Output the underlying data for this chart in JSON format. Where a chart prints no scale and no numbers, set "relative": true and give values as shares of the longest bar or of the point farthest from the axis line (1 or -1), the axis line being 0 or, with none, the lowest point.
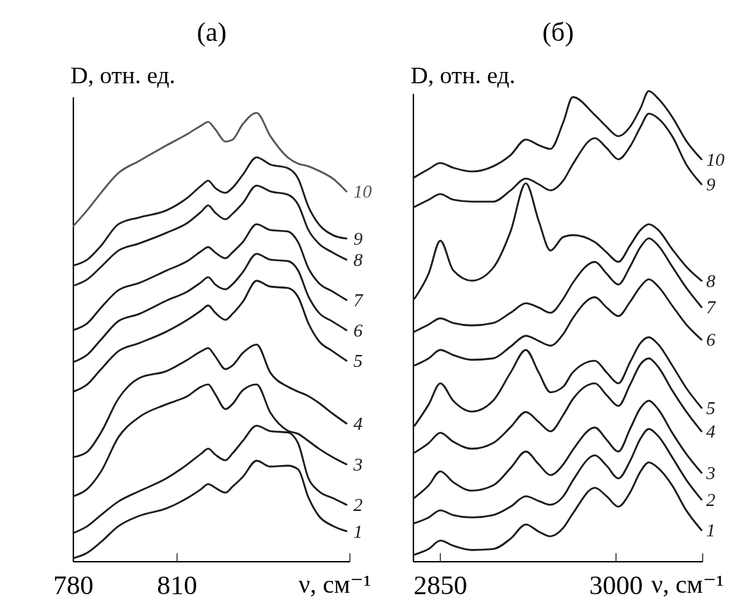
{
  "chart_data": [
    {
      "type": "line",
      "title": "(а)",
      "ylabel": "D, отн. ед.",
      "xlabel": "ν, см⁻¹",
      "relative": true,
      "x": [
        780,
        784,
        788,
        793,
        799,
        807,
        813,
        817,
        819,
        821,
        824,
        826,
        829,
        833,
        837,
        842,
        845,
        848,
        851,
        855,
        859
      ],
      "xlim": [
        780,
        860
      ],
      "xticks": [
        780,
        810,
        {
          "value": 860,
          "label": null
        }
      ],
      "series": [
        {
          "name": "1",
          "color": "#1a1a1a",
          "values": [
            0.008,
            0.02,
            0.044,
            0.079,
            0.102,
            0.119,
            0.142,
            0.162,
            0.173,
            0.165,
            0.154,
            0.167,
            0.189,
            0.225,
            0.212,
            0.214,
            0.206,
            0.143,
            0.102,
            0.08,
            0.068
          ]
        },
        {
          "name": "2",
          "color": "#1a1a1a",
          "values": [
            0.064,
            0.079,
            0.104,
            0.134,
            0.157,
            0.186,
            0.217,
            0.241,
            0.252,
            0.239,
            0.226,
            0.241,
            0.269,
            0.303,
            0.291,
            0.288,
            0.264,
            0.186,
            0.157,
            0.142,
            0.127
          ]
        },
        {
          "name": "3",
          "color": "#1a1a1a",
          "values": [
            0.146,
            0.162,
            0.201,
            0.277,
            0.322,
            0.351,
            0.369,
            0.39,
            0.395,
            0.374,
            0.34,
            0.351,
            0.382,
            0.395,
            0.332,
            0.292,
            0.285,
            0.269,
            0.252,
            0.233,
            0.217
          ]
        },
        {
          "name": "4",
          "color": "#1a1a1a",
          "values": [
            0.233,
            0.245,
            0.288,
            0.363,
            0.409,
            0.425,
            0.45,
            0.469,
            0.476,
            0.458,
            0.429,
            0.437,
            0.465,
            0.484,
            0.421,
            0.39,
            0.379,
            0.369,
            0.354,
            0.33,
            0.308
          ]
        },
        {
          "name": "5",
          "color": "#1a1a1a",
          "values": [
            0.379,
            0.395,
            0.429,
            0.469,
            0.487,
            0.513,
            0.539,
            0.56,
            0.571,
            0.555,
            0.539,
            0.552,
            0.579,
            0.626,
            0.613,
            0.61,
            0.59,
            0.531,
            0.492,
            0.469,
            0.448
          ]
        },
        {
          "name": "6",
          "color": "#1a1a1a",
          "values": [
            0.445,
            0.461,
            0.495,
            0.536,
            0.552,
            0.582,
            0.602,
            0.623,
            0.634,
            0.618,
            0.607,
            0.618,
            0.645,
            0.686,
            0.673,
            0.67,
            0.649,
            0.591,
            0.555,
            0.535,
            0.516
          ]
        },
        {
          "name": "7",
          "color": "#1a1a1a",
          "values": [
            0.516,
            0.531,
            0.566,
            0.605,
            0.621,
            0.649,
            0.67,
            0.692,
            0.701,
            0.689,
            0.676,
            0.689,
            0.712,
            0.752,
            0.739,
            0.736,
            0.712,
            0.654,
            0.621,
            0.602,
            0.583
          ]
        },
        {
          "name": "8",
          "color": "#1a1a1a",
          "values": [
            0.615,
            0.629,
            0.657,
            0.693,
            0.709,
            0.733,
            0.755,
            0.78,
            0.794,
            0.778,
            0.763,
            0.775,
            0.799,
            0.838,
            0.825,
            0.818,
            0.796,
            0.739,
            0.709,
            0.689,
            0.673
          ]
        },
        {
          "name": "9",
          "color": "#1a1a1a",
          "values": [
            0.66,
            0.673,
            0.704,
            0.752,
            0.767,
            0.783,
            0.811,
            0.838,
            0.849,
            0.833,
            0.822,
            0.833,
            0.862,
            0.901,
            0.885,
            0.877,
            0.854,
            0.791,
            0.752,
            0.728,
            0.72
          ]
        },
        {
          "name": "10",
          "color": "#555555",
          "values": [
            0.748,
            0.783,
            0.822,
            0.866,
            0.893,
            0.928,
            0.953,
            0.972,
            0.98,
            0.964,
            0.936,
            0.94,
            0.975,
            1,
            0.948,
            0.901,
            0.887,
            0.881,
            0.871,
            0.854,
            0.825
          ]
        }
      ]
    },
    {
      "type": "line",
      "title": "(б)",
      "ylabel": "D, отн. ед.",
      "xlabel": "ν, см⁻¹",
      "relative": true,
      "x": [
        2828,
        2840,
        2850,
        2861,
        2877,
        2895,
        2910,
        2923,
        2934,
        2944,
        2955,
        2963,
        2982,
        2992,
        3002,
        3012,
        3021,
        3028,
        3036,
        3048,
        3060,
        3073
      ],
      "xlim": [
        2827,
        3074
      ],
      "xticks": [
        2850,
        3000,
        {
          "value": 3074,
          "label": null
        }
      ],
      "series": [
        {
          "name": "1",
          "color": "#1a1a1a",
          "values": [
            0.015,
            0.027,
            0.045,
            0.034,
            0.025,
            0.027,
            0.049,
            0.079,
            0.064,
            0.054,
            0.072,
            0.102,
            0.157,
            0.139,
            0.117,
            0.147,
            0.192,
            0.211,
            0.199,
            0.162,
            0.109,
            0.067
          ]
        },
        {
          "name": "2",
          "color": "#1a1a1a",
          "values": [
            0.082,
            0.094,
            0.109,
            0.099,
            0.094,
            0.099,
            0.117,
            0.139,
            0.129,
            0.121,
            0.139,
            0.172,
            0.226,
            0.204,
            0.177,
            0.214,
            0.262,
            0.282,
            0.267,
            0.222,
            0.174,
            0.132
          ]
        },
        {
          "name": "3",
          "color": "#1a1a1a",
          "values": [
            0.136,
            0.162,
            0.192,
            0.169,
            0.151,
            0.162,
            0.199,
            0.234,
            0.207,
            0.184,
            0.207,
            0.237,
            0.285,
            0.259,
            0.234,
            0.282,
            0.327,
            0.342,
            0.324,
            0.274,
            0.229,
            0.189
          ]
        },
        {
          "name": "4",
          "color": "#1a1a1a",
          "values": [
            0.232,
            0.252,
            0.274,
            0.255,
            0.24,
            0.252,
            0.286,
            0.318,
            0.297,
            0.277,
            0.312,
            0.345,
            0.379,
            0.354,
            0.331,
            0.376,
            0.42,
            0.432,
            0.414,
            0.364,
            0.319,
            0.277
          ]
        },
        {
          "name": "5",
          "color": "#1a1a1a",
          "values": [
            0.289,
            0.334,
            0.379,
            0.342,
            0.319,
            0.342,
            0.402,
            0.45,
            0.402,
            0.36,
            0.372,
            0.402,
            0.427,
            0.402,
            0.379,
            0.424,
            0.465,
            0.477,
            0.462,
            0.417,
            0.369,
            0.327
          ]
        },
        {
          "name": "6",
          "color": "#1a1a1a",
          "values": [
            0.417,
            0.432,
            0.45,
            0.439,
            0.429,
            0.432,
            0.457,
            0.48,
            0.469,
            0.459,
            0.484,
            0.517,
            0.562,
            0.54,
            0.522,
            0.552,
            0.585,
            0.6,
            0.585,
            0.544,
            0.504,
            0.472
          ]
        },
        {
          "name": "7",
          "color": "#1a1a1a",
          "values": [
            0.489,
            0.504,
            0.517,
            0.507,
            0.502,
            0.507,
            0.529,
            0.549,
            0.54,
            0.529,
            0.559,
            0.592,
            0.637,
            0.612,
            0.589,
            0.627,
            0.669,
            0.687,
            0.672,
            0.627,
            0.582,
            0.541
          ]
        },
        {
          "name": "8",
          "color": "#1a1a1a",
          "values": [
            0.559,
            0.612,
            0.682,
            0.619,
            0.597,
            0.624,
            0.702,
            0.804,
            0.724,
            0.661,
            0.69,
            0.694,
            0.679,
            0.657,
            0.637,
            0.672,
            0.705,
            0.717,
            0.705,
            0.664,
            0.627,
            0.597
          ]
        },
        {
          "name": "9",
          "color": "#1a1a1a",
          "values": [
            0.754,
            0.769,
            0.781,
            0.769,
            0.765,
            0.765,
            0.789,
            0.814,
            0.802,
            0.789,
            0.81,
            0.844,
            0.9,
            0.879,
            0.855,
            0.882,
            0.924,
            0.952,
            0.942,
            0.904,
            0.844,
            0.802
          ]
        },
        {
          "name": "10",
          "color": "#1a1a1a",
          "values": [
            0.817,
            0.834,
            0.847,
            0.837,
            0.829,
            0.84,
            0.864,
            0.897,
            0.885,
            0.877,
            0.934,
            0.987,
            0.949,
            0.924,
            0.904,
            0.924,
            0.964,
            1,
            0.984,
            0.945,
            0.894,
            0.855
          ]
        }
      ]
    }
  ]
}
